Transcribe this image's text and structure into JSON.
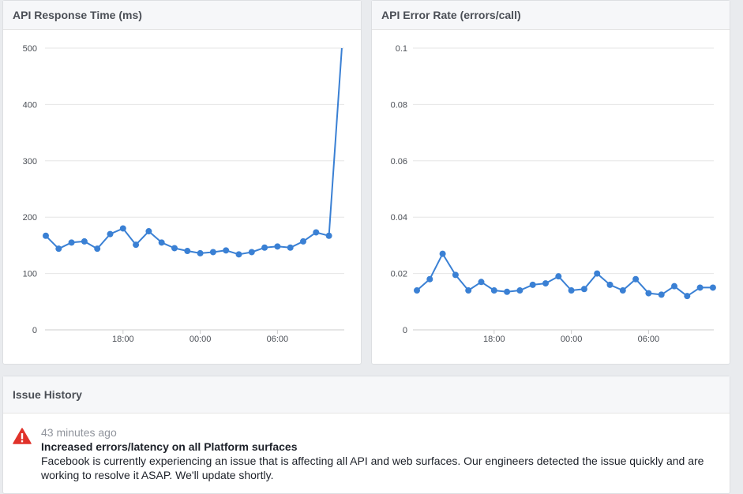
{
  "charts": [
    {
      "id": "response",
      "title": "API Response Time (ms)",
      "chart_data": {
        "type": "line",
        "title": "API Response Time (ms)",
        "ylim": [
          0,
          500
        ],
        "y_ticks": [
          "0",
          "100",
          "200",
          "300",
          "400",
          "500"
        ],
        "x_ticks": [
          "18:00",
          "00:00",
          "06:00"
        ],
        "x_tick_index": [
          6,
          12,
          18
        ],
        "line_color": "#3a80d4",
        "grid": true,
        "series": [
          {
            "values": [
              167,
              144,
              155,
              157,
              144,
              170,
              180,
              151,
              175,
              155,
              145,
              140,
              136,
              138,
              141,
              134,
              138,
              146,
              148,
              146,
              157,
              173,
              167,
              500
            ],
            "marker_count": 23
          }
        ]
      }
    },
    {
      "id": "errors",
      "title": "API Error Rate (errors/call)",
      "chart_data": {
        "type": "line",
        "title": "API Error Rate (errors/call)",
        "ylim": [
          0,
          0.1
        ],
        "y_ticks": [
          "0",
          "0.02",
          "0.04",
          "0.06",
          "0.08",
          "0.1"
        ],
        "x_ticks": [
          "18:00",
          "00:00",
          "06:00"
        ],
        "x_tick_index": [
          6,
          12,
          18
        ],
        "line_color": "#3a80d4",
        "grid": true,
        "series": [
          {
            "values": [
              0.014,
              0.018,
              0.027,
              0.0195,
              0.014,
              0.017,
              0.014,
              0.0135,
              0.014,
              0.016,
              0.0165,
              0.019,
              0.014,
              0.0145,
              0.02,
              0.016,
              0.014,
              0.018,
              0.013,
              0.0125,
              0.0155,
              0.012,
              0.015,
              0.015
            ],
            "marker_count": 24
          }
        ]
      }
    }
  ],
  "issues": {
    "title": "Issue History",
    "items": [
      {
        "time": "43 minutes ago",
        "headline": "Increased errors/latency on all Platform surfaces",
        "description": "Facebook is currently experiencing an issue that is affecting all API and web surfaces. Our engineers detected the issue quickly and are working to resolve it ASAP. We'll update shortly.",
        "icon": "warning-icon",
        "icon_color": "#e0322a"
      }
    ]
  }
}
